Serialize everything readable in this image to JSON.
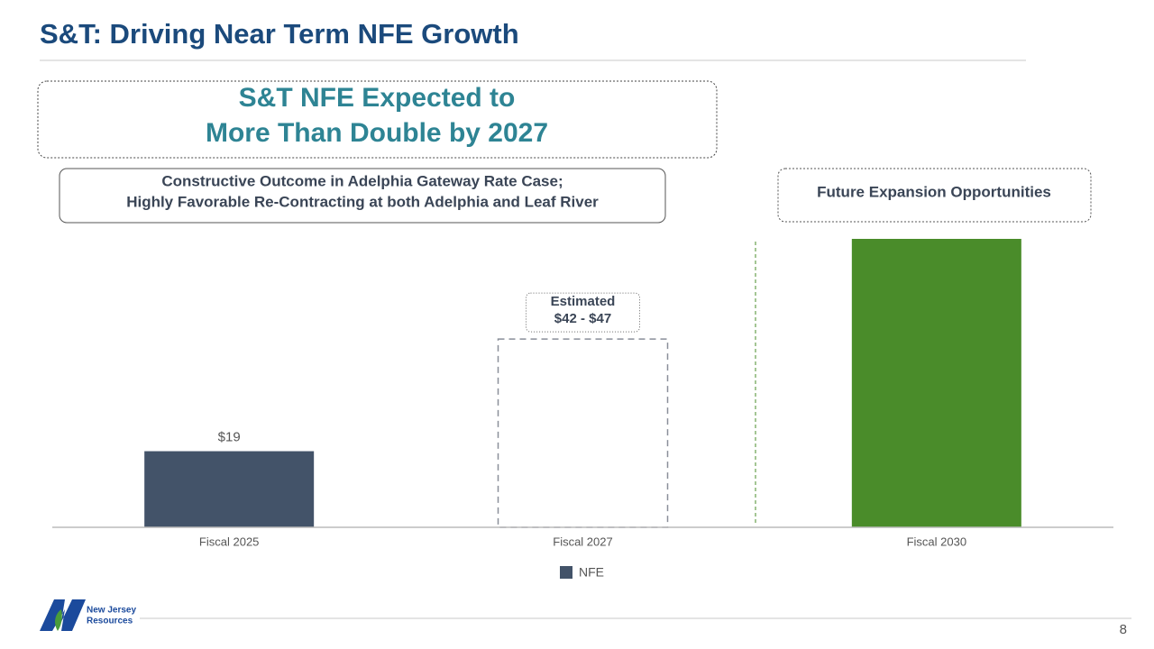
{
  "title": "S&T: Driving Near Term NFE Growth",
  "headline": [
    "S&T NFE Expected to",
    "More Than Double by 2027"
  ],
  "callouts": [
    {
      "lines": [
        "Constructive Outcome in Adelphia Gateway Rate Case;",
        "Highly Favorable Re-Contracting at both Adelphia and Leaf River"
      ]
    },
    {
      "lines": [
        "Future Expansion Opportunities"
      ]
    }
  ],
  "chart_data": {
    "type": "bar",
    "categories": [
      "Fiscal 2025",
      "Fiscal 2027",
      "Fiscal 2030"
    ],
    "series": [
      {
        "name": "NFE",
        "color": "#435369",
        "values": [
          19,
          47,
          72
        ],
        "value_labels": [
          "$19",
          "$42 - $47",
          null
        ]
      }
    ],
    "annotation": "Estimated",
    "bar_fills": [
      "#435369",
      "none",
      "#4a8c2a"
    ],
    "bar_dashed": [
      false,
      true,
      false
    ],
    "legend": "bottom"
  },
  "footer": {
    "logo_lines": [
      "New Jersey",
      "Resources"
    ],
    "page_number": 8
  }
}
